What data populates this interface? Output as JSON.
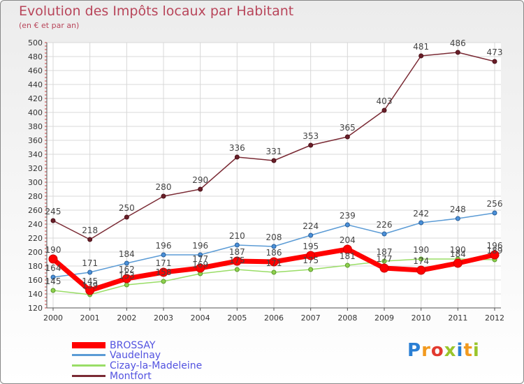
{
  "brand": {
    "logo_text": "Proxiti",
    "logo_colors": [
      "#2a7fd4",
      "#f29a1f",
      "#e23a2f",
      "#9ac52c",
      "#2a7fd4",
      "#f29a1f",
      "#9ac52c"
    ]
  },
  "chart_data": {
    "type": "line",
    "title": "Evolution des Impôts locaux par Habitant",
    "subtitle": "(en € et par an)",
    "xlabel": "",
    "ylabel": "",
    "ylim": [
      120,
      500
    ],
    "yticks": [
      120,
      140,
      160,
      180,
      200,
      220,
      240,
      260,
      280,
      300,
      320,
      340,
      360,
      380,
      400,
      420,
      440,
      460,
      480,
      500
    ],
    "categories": [
      "2000",
      "2001",
      "2002",
      "2003",
      "2004",
      "2005",
      "2006",
      "2007",
      "2008",
      "2009",
      "2010",
      "2011",
      "2012"
    ],
    "legend_position": "bottom-left",
    "series": [
      {
        "name": "BROSSAY",
        "color": "#ff0000",
        "values": [
          190,
          145,
          162,
          171,
          177,
          187,
          186,
          195,
          204,
          177,
          174,
          184,
          196
        ],
        "labels": [
          "190",
          "145",
          "162",
          "171",
          "177",
          "187",
          "186",
          "195",
          "204",
          "177",
          "174",
          "184",
          "196"
        ]
      },
      {
        "name": "Vaudelnay",
        "color": "#5b9bd5",
        "values": [
          164,
          171,
          184,
          196,
          196,
          210,
          208,
          224,
          239,
          226,
          242,
          248,
          256
        ],
        "labels": [
          "164",
          "171",
          "184",
          "196",
          "196",
          "210",
          "208",
          "224",
          "239",
          "226",
          "242",
          "248",
          "256"
        ]
      },
      {
        "name": "Cizay-la-Madeleine",
        "color": "#99dd66",
        "values": [
          145,
          139,
          153,
          158,
          169,
          175,
          171,
          175,
          181,
          187,
          190,
          190,
          189
        ],
        "labels": [
          "145",
          "139",
          "153",
          "158",
          "169",
          "175",
          "171",
          "175",
          "181",
          "187",
          "190",
          "190",
          "189"
        ]
      },
      {
        "name": "Montfort",
        "color": "#7a2a34",
        "values": [
          245,
          218,
          250,
          280,
          290,
          336,
          331,
          353,
          365,
          403,
          481,
          486,
          473
        ],
        "labels": [
          "245",
          "218",
          "250",
          "280",
          "290",
          "336",
          "331",
          "353",
          "365",
          "403",
          "481",
          "486",
          "473"
        ]
      }
    ]
  }
}
